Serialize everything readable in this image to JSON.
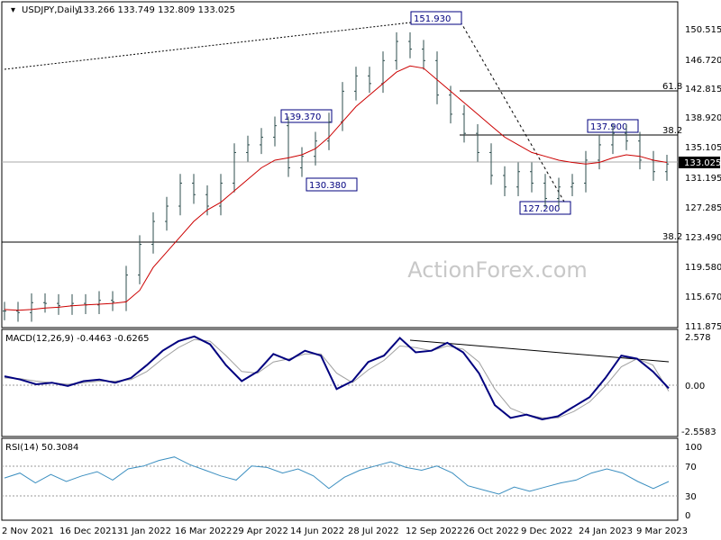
{
  "header": {
    "symbol": "USDJPY,Daily",
    "ohlc": "133.266 133.749 132.809 133.025"
  },
  "watermark": "ActionForex.com",
  "colors": {
    "background": "#ffffff",
    "candle": "#2e4e4e",
    "ma": "#cc0000",
    "macd": "#00007f",
    "signal": "#a0a0a0",
    "rsi": "#3c8fc0",
    "label_box": "#00007f",
    "label_text": "#00007f"
  },
  "price_panel": {
    "y_ticks": [
      "150.515",
      "146.720",
      "142.815",
      "138.920",
      "135.105",
      "131.195",
      "127.285",
      "123.490",
      "119.580",
      "115.670",
      "111.875"
    ],
    "current_price": "133.025",
    "annotations": [
      "151.930",
      "139.370",
      "130.380",
      "127.200",
      "137.900"
    ],
    "fib_labels": [
      "61.8",
      "38.2",
      "38.2"
    ]
  },
  "macd_panel": {
    "title": "MACD(12,26,9) -0.4463 -0.6265",
    "y_ticks": [
      "2.578",
      "0.00",
      "-2.5583"
    ]
  },
  "rsi_panel": {
    "title": "RSI(14) 50.3084",
    "y_ticks": [
      "100",
      "70",
      "30",
      "0"
    ]
  },
  "x_axis": {
    "labels": [
      "2 Nov 2021",
      "16 Dec 2021",
      "31 Jan 2022",
      "16 Mar 2022",
      "29 Apr 2022",
      "14 Jun 2022",
      "28 Jul 2022",
      "12 Sep 2022",
      "26 Oct 2022",
      "9 Dec 2022",
      "24 Jan 2023",
      "9 Mar 2023"
    ]
  },
  "chart_data": [
    {
      "type": "line",
      "x_labels": [
        "2 Nov 2021",
        "16 Dec 2021",
        "31 Jan 2022",
        "16 Mar 2022",
        "29 Apr 2022",
        "14 Jun 2022",
        "28 Jul 2022",
        "12 Sep 2022",
        "26 Oct 2022",
        "9 Dec 2022",
        "24 Jan 2023",
        "9 Mar 2023"
      ],
      "close": [
        113.8,
        113.6,
        114.9,
        114.8,
        114.5,
        114.8,
        114.6,
        115.2,
        115.0,
        118.5,
        122.5,
        125.5,
        127.5,
        130.5,
        129.0,
        127.5,
        130.5,
        134.5,
        135.5,
        136.5,
        138.0,
        132.5,
        134.0,
        136.0,
        138.5,
        142.5,
        144.5,
        143.5,
        146.5,
        149.0,
        148.0,
        146.5,
        142.0,
        139.5,
        137.0,
        134.5,
        131.5,
        130.0,
        132.0,
        130.5,
        128.5,
        130.0,
        130.5,
        133.5,
        135.5,
        137.0,
        136.0,
        133.5,
        132.0,
        133.0
      ],
      "ma": [
        114.0,
        113.9,
        114.0,
        114.2,
        114.3,
        114.5,
        114.6,
        114.7,
        114.8,
        115.0,
        116.5,
        119.5,
        121.5,
        123.5,
        125.5,
        127.0,
        128.0,
        129.5,
        131.0,
        132.5,
        133.5,
        133.8,
        134.2,
        135.0,
        136.5,
        138.5,
        140.5,
        142.0,
        143.5,
        145.0,
        145.8,
        145.5,
        144.0,
        142.5,
        141.0,
        139.5,
        138.0,
        136.5,
        135.5,
        134.5,
        134.0,
        133.5,
        133.2,
        133.0,
        133.2,
        133.8,
        134.2,
        134.0,
        133.5,
        133.2
      ],
      "ylim": [
        111.875,
        153.0
      ],
      "annotations": [
        151.93,
        139.37,
        130.38,
        127.2,
        137.9
      ],
      "fib_levels": {
        "61.8": 142.8,
        "38.2": 136.4,
        "38.2 (lower)": 123.1
      },
      "current": 133.025
    },
    {
      "type": "line",
      "title": "MACD(12,26,9) -0.4463 -0.6265",
      "macd": [
        0.3,
        0.1,
        -0.2,
        -0.1,
        -0.3,
        0.0,
        0.1,
        -0.1,
        0.2,
        1.0,
        1.9,
        2.5,
        2.8,
        2.3,
        1.0,
        0.0,
        0.6,
        1.7,
        1.3,
        1.9,
        1.6,
        -0.5,
        0.0,
        1.2,
        1.6,
        2.7,
        1.8,
        1.9,
        2.4,
        1.8,
        0.5,
        -1.5,
        -2.3,
        -2.1,
        -2.4,
        -2.2,
        -1.6,
        -1.0,
        0.2,
        1.6,
        1.4,
        0.6,
        -0.45
      ],
      "signal": [
        0.2,
        0.15,
        0.0,
        -0.1,
        -0.2,
        -0.1,
        0.0,
        0.0,
        0.1,
        0.6,
        1.4,
        2.1,
        2.6,
        2.5,
        1.6,
        0.6,
        0.5,
        1.2,
        1.4,
        1.7,
        1.7,
        0.5,
        -0.1,
        0.7,
        1.3,
        2.2,
        2.1,
        1.9,
        2.2,
        2.0,
        1.2,
        -0.5,
        -1.7,
        -2.1,
        -2.3,
        -2.3,
        -1.9,
        -1.3,
        -0.3,
        0.9,
        1.4,
        1.0,
        -0.63
      ],
      "ylim": [
        -3.3,
        2.9
      ],
      "trendline": [
        2.6,
        1.3
      ]
    },
    {
      "type": "line",
      "title": "RSI(14) 50.3084",
      "values": [
        55,
        62,
        48,
        60,
        50,
        58,
        64,
        52,
        68,
        72,
        80,
        85,
        74,
        66,
        58,
        52,
        72,
        70,
        62,
        68,
        58,
        40,
        56,
        66,
        72,
        78,
        70,
        66,
        72,
        62,
        44,
        38,
        32,
        42,
        36,
        42,
        48,
        52,
        62,
        68,
        62,
        50,
        40,
        50
      ],
      "ylim": [
        0,
        100
      ],
      "levels": [
        70,
        30
      ]
    }
  ]
}
